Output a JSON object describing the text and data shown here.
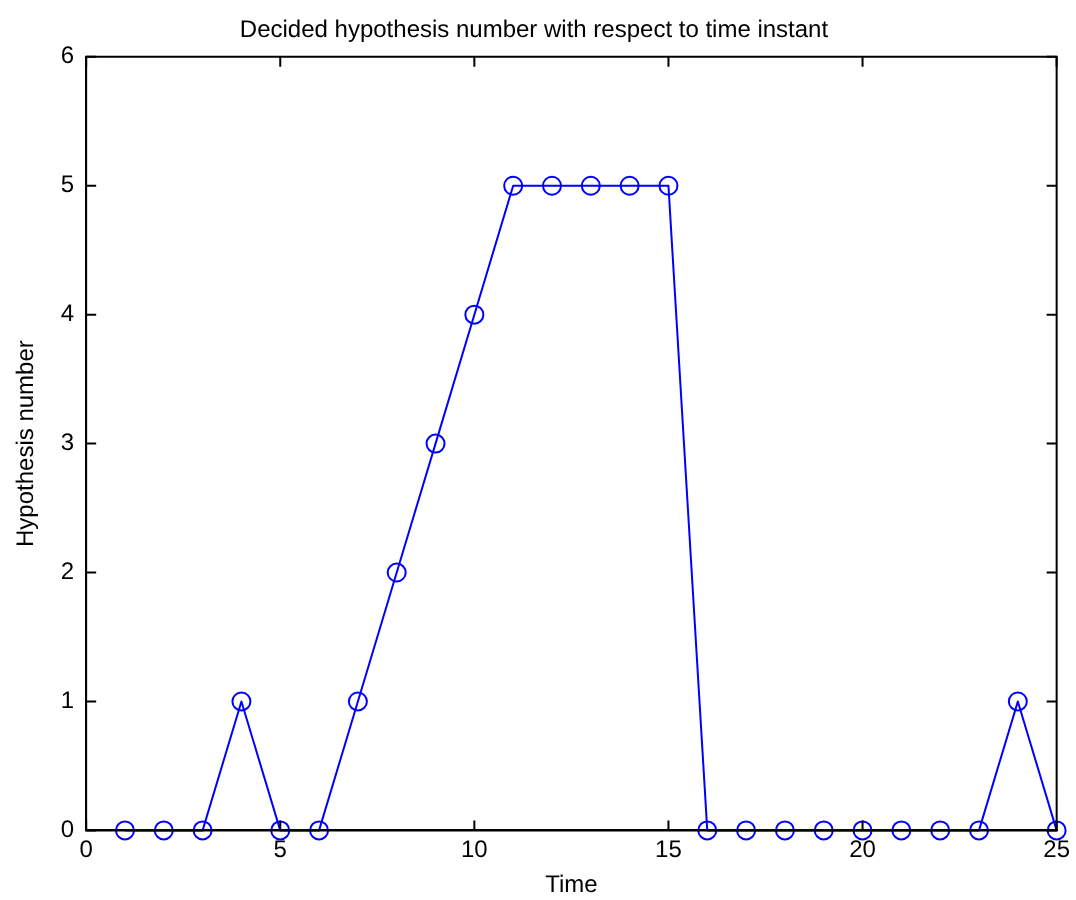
{
  "chart_data": {
    "type": "line",
    "title": "Decided hypothesis number with respect to time instant",
    "xlabel": "Time",
    "ylabel": "Hypothesis number",
    "x": [
      1,
      2,
      3,
      4,
      5,
      6,
      7,
      8,
      9,
      10,
      11,
      12,
      13,
      14,
      15,
      16,
      17,
      18,
      19,
      20,
      21,
      22,
      23,
      24,
      25
    ],
    "series": [
      {
        "color": "#0000ff",
        "values": [
          0,
          0,
          0,
          1,
          0,
          0,
          1,
          2,
          3,
          4,
          5,
          5,
          5,
          5,
          5,
          0,
          0,
          0,
          0,
          0,
          0,
          0,
          0,
          1,
          0
        ]
      }
    ],
    "xlim": [
      0,
      25
    ],
    "xticks": [
      0,
      5,
      10,
      15,
      20,
      25
    ],
    "ylim": [
      0,
      6
    ],
    "yticks": [
      0,
      1,
      2,
      3,
      4,
      5,
      6
    ],
    "grid": false,
    "legend": false,
    "marker": "circle",
    "line_style": "solid"
  }
}
